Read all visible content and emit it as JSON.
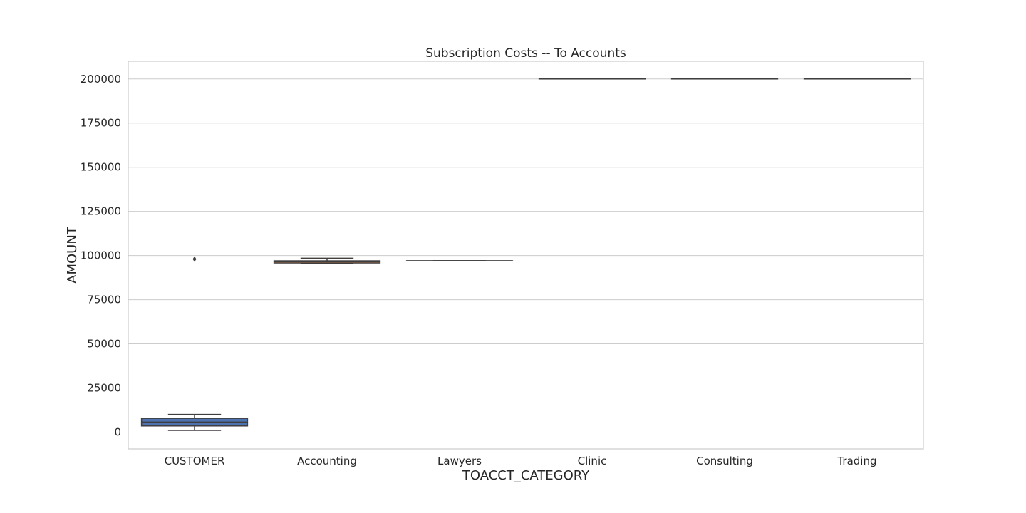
{
  "chart_data": {
    "type": "box",
    "title": "Subscription Costs -- To Accounts",
    "xlabel": "TOACCT_CATEGORY",
    "ylabel": "AMOUNT",
    "ylim": [
      -9500,
      210000
    ],
    "yticks": [
      0,
      25000,
      50000,
      75000,
      100000,
      125000,
      150000,
      175000,
      200000
    ],
    "grid": true,
    "categories": [
      "CUSTOMER",
      "Accounting",
      "Lawyers",
      "Clinic",
      "Consulting",
      "Trading"
    ],
    "boxes": [
      {
        "category": "CUSTOMER",
        "whisker_low": 1000,
        "q1": 3500,
        "median": 5700,
        "q3": 7800,
        "whisker_high": 10000,
        "outliers": [
          98000
        ],
        "color": "#4c72b0"
      },
      {
        "category": "Accounting",
        "whisker_low": 95500,
        "q1": 95800,
        "median": 96500,
        "q3": 97000,
        "whisker_high": 98500,
        "outliers": [],
        "color": "#dd8452"
      },
      {
        "category": "Lawyers",
        "whisker_low": 97000,
        "q1": 97000,
        "median": 97000,
        "q3": 97000,
        "whisker_high": 97000,
        "outliers": [],
        "color": "#55a868"
      },
      {
        "category": "Clinic",
        "whisker_low": 200000,
        "q1": 200000,
        "median": 200000,
        "q3": 200000,
        "whisker_high": 200000,
        "outliers": [],
        "color": "#c44e52"
      },
      {
        "category": "Consulting",
        "whisker_low": 200000,
        "q1": 200000,
        "median": 200000,
        "q3": 200000,
        "whisker_high": 200000,
        "outliers": [],
        "color": "#8172b3"
      },
      {
        "category": "Trading",
        "whisker_low": 200000,
        "q1": 200000,
        "median": 200000,
        "q3": 200000,
        "whisker_high": 200000,
        "outliers": [],
        "color": "#937860"
      }
    ]
  }
}
